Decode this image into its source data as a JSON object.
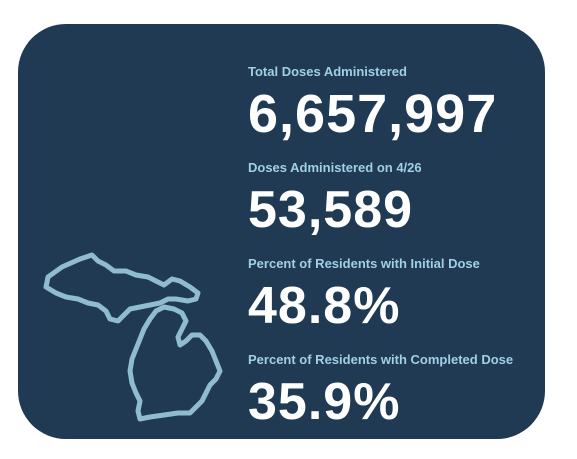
{
  "stats": [
    {
      "label": "Total Doses Administered",
      "value": "6,657,997"
    },
    {
      "label": "Doses Administered on 4/26",
      "value": "53,589"
    },
    {
      "label": "Percent of Residents with Initial Dose",
      "value": "48.8%"
    },
    {
      "label": "Percent of Residents with Completed Dose",
      "value": "35.9%"
    }
  ],
  "colors": {
    "background": "#1f3a52",
    "label": "#9fd0e6",
    "value": "#ffffff",
    "map_outline": "#8fbcd0"
  },
  "icons": {
    "map": "michigan-outline-icon"
  }
}
